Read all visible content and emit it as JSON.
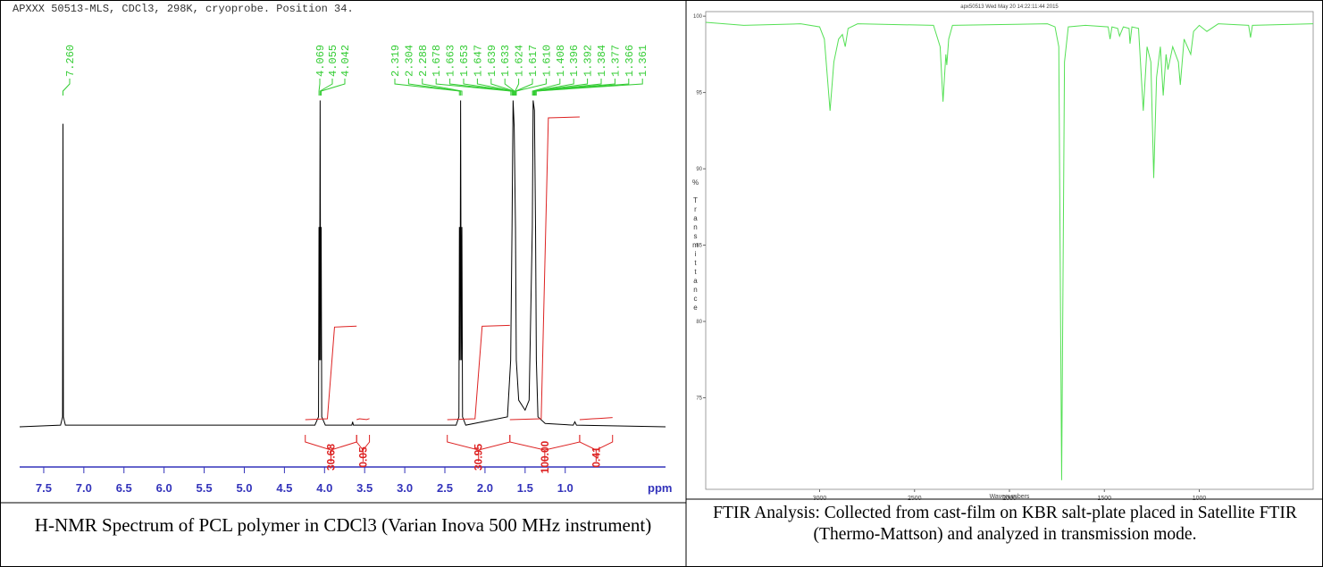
{
  "chart_data": [
    {
      "type": "line",
      "title": "APXXX 50513-MLS, CDCl3, 298K, cryoprobe.  Position 34.",
      "xlabel": "ppm",
      "xlim": [
        7.8,
        -0.25
      ],
      "ylim": [
        0,
        100
      ],
      "xticks": [
        7.5,
        {
          "value": 7,
          "label": "7.0"
        },
        6.5,
        {
          "value": 6,
          "label": "6.0"
        },
        5.5,
        {
          "value": 5,
          "label": "5.0"
        },
        4.5,
        {
          "value": 4,
          "label": "4.0"
        },
        3.5,
        {
          "value": 3,
          "label": "3.0"
        },
        2.5,
        {
          "value": 2,
          "label": "2.0"
        },
        1.5,
        {
          "value": 1,
          "label": "1.0"
        }
      ],
      "x": [
        7.8,
        7.29,
        7.265,
        7.26,
        7.255,
        7.23,
        4.12,
        4.075,
        4.069,
        4.062,
        4.055,
        4.048,
        4.042,
        4.035,
        3.99,
        3.66,
        3.65,
        3.64,
        2.36,
        2.325,
        2.319,
        2.311,
        2.304,
        2.296,
        2.288,
        2.28,
        2.24,
        1.72,
        1.68,
        1.663,
        1.65,
        1.636,
        1.62,
        1.61,
        1.58,
        1.5,
        1.45,
        1.41,
        1.4,
        1.384,
        1.37,
        1.36,
        1.34,
        1.25,
        0.9,
        0.88,
        0.86,
        -0.25
      ],
      "series": [
        {
          "color": "#000000",
          "values": [
            0,
            0.5,
            3,
            91,
            3,
            0.5,
            0.5,
            3,
            60,
            20,
            98,
            20,
            60,
            3,
            0.5,
            0.5,
            1.5,
            0.5,
            0.5,
            3,
            60,
            20,
            98,
            20,
            60,
            3,
            0.5,
            3,
            20,
            60,
            98,
            90,
            60,
            20,
            8,
            5,
            8,
            60,
            98,
            95,
            60,
            20,
            3,
            1,
            0.5,
            1.5,
            0.5,
            0
          ]
        }
      ],
      "peaks": [
        7.26,
        4.069,
        4.055,
        4.042,
        2.319,
        2.304,
        2.288,
        1.678,
        1.663,
        1.653,
        1.647,
        1.639,
        1.633,
        1.624,
        1.617,
        1.61,
        1.408,
        1.396,
        1.392,
        1.384,
        1.377,
        1.366,
        1.361
      ],
      "peak_labels": [
        "7.260",
        "4.069",
        "4.055",
        "4.042",
        "2.319",
        "2.304",
        "2.288",
        "1.678",
        "1.663",
        "1.653",
        "1.647",
        "1.639",
        "1.633",
        "1.624",
        "1.617",
        "1.610",
        "1.408",
        "1.396",
        "1.392",
        "1.384",
        "1.377",
        "1.366",
        "1.361"
      ],
      "peak_color": "#33cc33",
      "integral_ranges": [
        [
          4.24,
          3.6
        ],
        [
          3.6,
          3.44
        ],
        [
          2.47,
          1.69
        ],
        [
          1.69,
          0.82
        ],
        [
          0.82,
          0.41
        ]
      ],
      "integrals": [
        30.68,
        0.05,
        30.95,
        100,
        0.41
      ],
      "integral_labels": [
        "30.68",
        "0.05",
        "30.95",
        "100.00",
        "0.41"
      ],
      "integral_color": "#dd2222",
      "axis_color": "#3333bb"
    },
    {
      "type": "line",
      "title": "apx50513  Wed May 20 14:22:11:44 2015",
      "xlabel": "Wavenumbers",
      "ylabel": "% Transmittance",
      "xlim": [
        3600,
        400
      ],
      "ylim": [
        69,
        100.3
      ],
      "xticks": [
        3000,
        2500,
        2000,
        1500,
        1000
      ],
      "yticks": [
        100,
        95,
        90,
        85,
        80,
        75
      ],
      "x": [
        3600,
        3400,
        3100,
        3000,
        2975,
        2945,
        2925,
        2900,
        2880,
        2865,
        2850,
        2800,
        2400,
        2365,
        2350,
        2335,
        2330,
        2320,
        2300,
        1800,
        1760,
        1740,
        1725,
        1710,
        1690,
        1600,
        1480,
        1470,
        1460,
        1430,
        1420,
        1400,
        1370,
        1365,
        1355,
        1320,
        1295,
        1275,
        1255,
        1240,
        1225,
        1205,
        1190,
        1175,
        1165,
        1140,
        1110,
        1100,
        1080,
        1045,
        1030,
        1000,
        960,
        900,
        740,
        730,
        720,
        400
      ],
      "series": [
        {
          "color": "#55e055",
          "values": [
            99.6,
            99.4,
            99.5,
            99.3,
            98.5,
            93.8,
            97,
            98.5,
            98.8,
            98,
            99.2,
            99.5,
            99.4,
            98,
            94.4,
            97.5,
            96.8,
            98.5,
            99.4,
            99.5,
            99.3,
            98,
            69.6,
            97,
            99.3,
            99.4,
            99.3,
            98.5,
            99.3,
            99.2,
            98.7,
            99.3,
            99.2,
            98.2,
            99.3,
            99.2,
            93.8,
            98,
            97,
            89.4,
            96,
            98,
            94.8,
            97.5,
            96.5,
            98,
            97,
            95.5,
            98.5,
            97.5,
            99,
            99.4,
            99,
            99.5,
            99.4,
            98.6,
            99.4,
            99.5
          ]
        }
      ]
    }
  ],
  "captions": [
    "H-NMR Spectrum of PCL polymer in CDCl3 (Varian Inova 500 MHz instrument)",
    "FTIR Analysis: Collected from cast-film on KBR salt-plate placed in Satellite FTIR (Thermo-Mattson) and analyzed in transmission mode."
  ]
}
